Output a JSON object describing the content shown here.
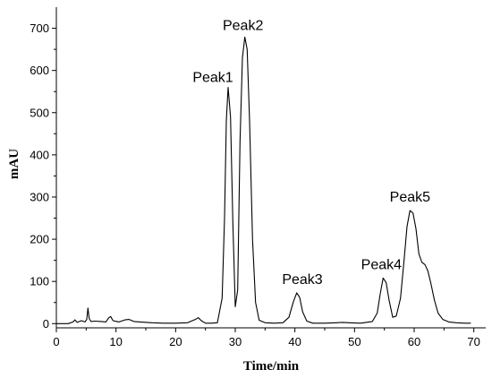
{
  "chart_data": {
    "type": "line",
    "xlabel": "Time/min",
    "ylabel": "mAU",
    "xlim": [
      0,
      72
    ],
    "ylim": [
      -10,
      750
    ],
    "x_ticks": [
      0,
      10,
      20,
      30,
      40,
      50,
      60,
      70
    ],
    "y_ticks": [
      0,
      100,
      200,
      300,
      400,
      500,
      600,
      700
    ],
    "grid": false,
    "series": [
      {
        "x": [
          0,
          2,
          2.8,
          3.1,
          3.5,
          4.2,
          4.8,
          5.1,
          5.3,
          5.5,
          5.8,
          6.5,
          7.5,
          8.3,
          8.8,
          9.1,
          9.5,
          10.5,
          11.5,
          12.2,
          13,
          14,
          16,
          18,
          20,
          22,
          23.3,
          23.8,
          24.3,
          25,
          26,
          27,
          27.8,
          28.2,
          28.5,
          28.8,
          29.2,
          29.6,
          30,
          30.4,
          30.8,
          31.2,
          31.6,
          32,
          32.4,
          32.9,
          33.4,
          34,
          35,
          36.5,
          38,
          39,
          39.7,
          40.3,
          40.8,
          41.3,
          42,
          43,
          45,
          47,
          48,
          49,
          51,
          53,
          53.8,
          54.3,
          54.8,
          55.3,
          55.8,
          56.4,
          57,
          57.7,
          58.3,
          58.8,
          59.3,
          59.8,
          60.3,
          60.8,
          61.3,
          61.8,
          62.3,
          62.8,
          63.4,
          64,
          64.8,
          65.8,
          67,
          68.5,
          69.5
        ],
        "y": [
          0,
          0,
          4,
          9,
          3,
          7,
          4,
          10,
          37,
          12,
          5,
          6,
          5,
          4,
          14,
          17,
          7,
          4,
          9,
          10,
          5,
          4,
          2,
          1,
          1,
          2,
          10,
          14,
          7,
          1,
          1,
          2,
          60,
          250,
          480,
          560,
          490,
          240,
          40,
          80,
          430,
          630,
          679,
          650,
          480,
          200,
          50,
          8,
          2,
          1,
          2,
          15,
          50,
          73,
          62,
          28,
          6,
          1,
          1,
          2,
          3,
          2,
          1,
          5,
          25,
          70,
          108,
          97,
          55,
          15,
          18,
          60,
          150,
          230,
          268,
          262,
          225,
          165,
          145,
          140,
          125,
          95,
          55,
          25,
          10,
          4,
          2,
          1,
          1
        ]
      }
    ],
    "annotations": [
      {
        "text": "Peak1",
        "x": 28.8,
        "y": 560
      },
      {
        "text": "Peak2",
        "x": 31.6,
        "y": 679
      },
      {
        "text": "Peak3",
        "x": 40.8,
        "y": 73
      },
      {
        "text": "Peak4",
        "x": 54.8,
        "y": 108
      },
      {
        "text": "Peak5",
        "x": 59.3,
        "y": 268
      }
    ]
  }
}
